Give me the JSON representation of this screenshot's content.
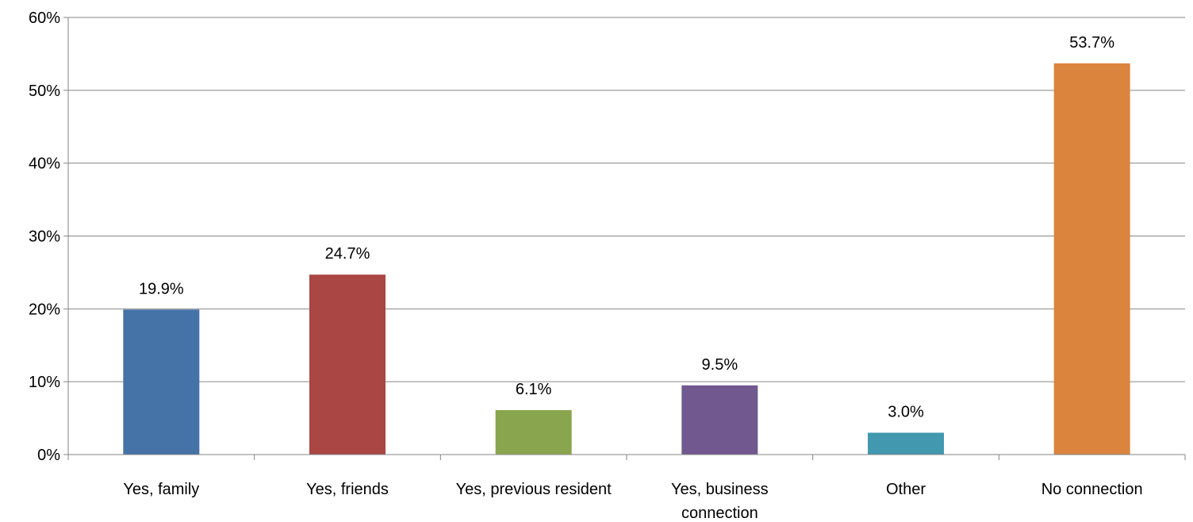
{
  "chart_data": {
    "type": "bar",
    "title": "",
    "xlabel": "",
    "ylabel": "",
    "ylim": [
      0,
      60
    ],
    "yticks": [
      "0%",
      "10%",
      "20%",
      "30%",
      "40%",
      "50%",
      "60%"
    ],
    "ytick_values": [
      0,
      10,
      20,
      30,
      40,
      50,
      60
    ],
    "grid": true,
    "legend": "none",
    "categories": [
      [
        "Yes, family"
      ],
      [
        "Yes, friends"
      ],
      [
        "Yes, previous resident"
      ],
      [
        "Yes, business",
        "connection"
      ],
      [
        "Other"
      ],
      [
        "No connection"
      ]
    ],
    "values": [
      19.9,
      24.7,
      6.1,
      9.5,
      3.0,
      53.7
    ],
    "value_labels": [
      "19.9%",
      "24.7%",
      "6.1%",
      "9.5%",
      "3.0%",
      "53.7%"
    ],
    "colors": [
      "#4572A7",
      "#AA4643",
      "#89A54E",
      "#71588F",
      "#4198AF",
      "#DB843D"
    ]
  }
}
